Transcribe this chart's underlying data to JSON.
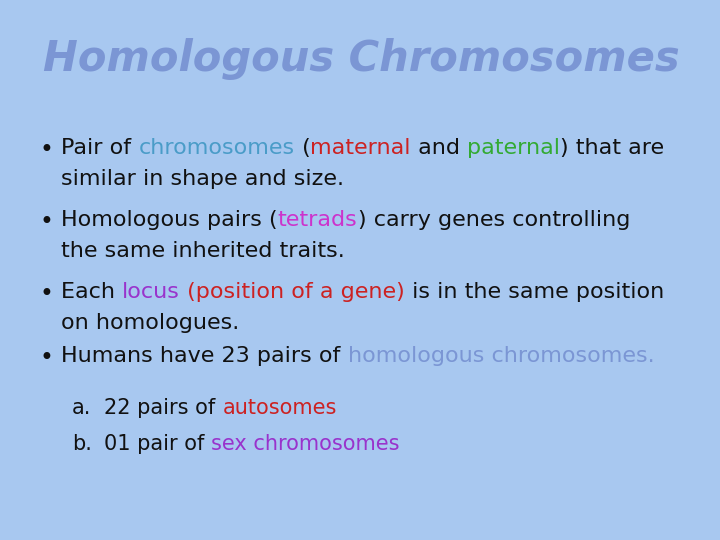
{
  "title": "Homologous Chromosomes",
  "title_color": "#7b96d4",
  "background_color": "#a8c8f0",
  "font_size_title": 30,
  "font_size_body": 16,
  "body_color": "#111111",
  "bullet1_parts": [
    {
      "text": "Pair of ",
      "color": "#111111"
    },
    {
      "text": "chromosomes",
      "color": "#4a9cc8"
    },
    {
      "text": " (",
      "color": "#111111"
    },
    {
      "text": "maternal",
      "color": "#cc2222"
    },
    {
      "text": " and ",
      "color": "#111111"
    },
    {
      "text": "paternal",
      "color": "#33aa33"
    },
    {
      "text": ") that are",
      "color": "#111111"
    }
  ],
  "bullet1_line2": "similar in shape and size.",
  "bullet2_parts": [
    {
      "text": "Homologous pairs (",
      "color": "#111111"
    },
    {
      "text": "tetrads",
      "color": "#cc33cc"
    },
    {
      "text": ") carry genes controlling",
      "color": "#111111"
    }
  ],
  "bullet2_line2": "the same inherited traits.",
  "bullet3_parts": [
    {
      "text": "Each ",
      "color": "#111111"
    },
    {
      "text": "locus",
      "color": "#9933cc"
    },
    {
      "text": " (position of a gene)",
      "color": "#cc2222"
    },
    {
      "text": " is in the same position",
      "color": "#111111"
    }
  ],
  "bullet3_line2": "on homologues.",
  "bullet4_parts": [
    {
      "text": "Humans have 23 pairs of ",
      "color": "#111111"
    },
    {
      "text": "homologous chromosomes.",
      "color": "#7b96d4"
    }
  ],
  "sub_a_label": "a.",
  "sub_a_parts": [
    {
      "text": "22 pairs of ",
      "color": "#111111"
    },
    {
      "text": "autosomes",
      "color": "#cc2222"
    }
  ],
  "sub_b_label": "b.",
  "sub_b_parts": [
    {
      "text": "01 pair of ",
      "color": "#111111"
    },
    {
      "text": "sex chromosomes",
      "color": "#9933cc"
    }
  ]
}
